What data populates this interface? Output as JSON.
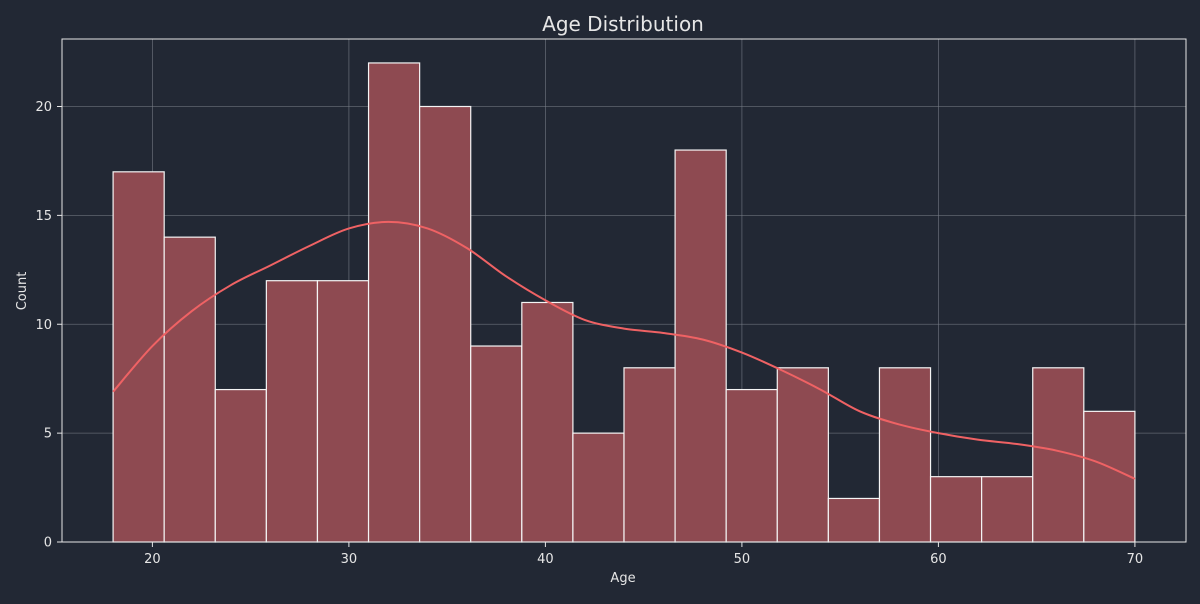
{
  "chart_data": {
    "type": "bar",
    "title": "Age Distribution",
    "xlabel": "Age",
    "ylabel": "Count",
    "xlim": [
      15.4,
      72.6
    ],
    "ylim": [
      0,
      23.1
    ],
    "xticks": [
      20,
      30,
      40,
      50,
      60,
      70
    ],
    "yticks": [
      0,
      5,
      10,
      15,
      20
    ],
    "grid": true,
    "bins": [
      {
        "start": 18.0,
        "end": 20.6,
        "count": 17
      },
      {
        "start": 20.6,
        "end": 23.2,
        "count": 14
      },
      {
        "start": 23.2,
        "end": 25.8,
        "count": 7
      },
      {
        "start": 25.8,
        "end": 28.4,
        "count": 12
      },
      {
        "start": 28.4,
        "end": 31.0,
        "count": 12
      },
      {
        "start": 31.0,
        "end": 33.6,
        "count": 22
      },
      {
        "start": 33.6,
        "end": 36.2,
        "count": 20
      },
      {
        "start": 36.2,
        "end": 38.8,
        "count": 9
      },
      {
        "start": 38.8,
        "end": 41.4,
        "count": 11
      },
      {
        "start": 41.4,
        "end": 44.0,
        "count": 5
      },
      {
        "start": 44.0,
        "end": 46.6,
        "count": 8
      },
      {
        "start": 46.6,
        "end": 49.2,
        "count": 18
      },
      {
        "start": 49.2,
        "end": 51.8,
        "count": 7
      },
      {
        "start": 51.8,
        "end": 54.4,
        "count": 8
      },
      {
        "start": 54.4,
        "end": 57.0,
        "count": 2
      },
      {
        "start": 57.0,
        "end": 59.6,
        "count": 8
      },
      {
        "start": 59.6,
        "end": 62.2,
        "count": 3
      },
      {
        "start": 62.2,
        "end": 64.8,
        "count": 3
      },
      {
        "start": 64.8,
        "end": 67.4,
        "count": 8
      },
      {
        "start": 67.4,
        "end": 70.0,
        "count": 6
      }
    ],
    "kde": {
      "x": [
        18,
        20,
        22,
        24,
        26,
        28,
        30,
        32,
        34,
        36,
        38,
        40,
        42,
        44,
        46,
        48,
        50,
        52,
        54,
        56,
        58,
        60,
        62,
        64,
        66,
        68,
        70
      ],
      "y": [
        6.9,
        9.0,
        10.6,
        11.8,
        12.7,
        13.6,
        14.4,
        14.7,
        14.4,
        13.5,
        12.2,
        11.1,
        10.2,
        9.8,
        9.6,
        9.3,
        8.7,
        7.9,
        7.0,
        6.0,
        5.4,
        5.0,
        4.7,
        4.5,
        4.2,
        3.7,
        2.9
      ]
    },
    "colors": {
      "background": "#222834",
      "bar_fill": "#8e4a51",
      "bar_edge": "#f5f5f5",
      "kde_line": "#ef6264",
      "grid": "#7a808a",
      "text": "#e6e6e6"
    }
  }
}
